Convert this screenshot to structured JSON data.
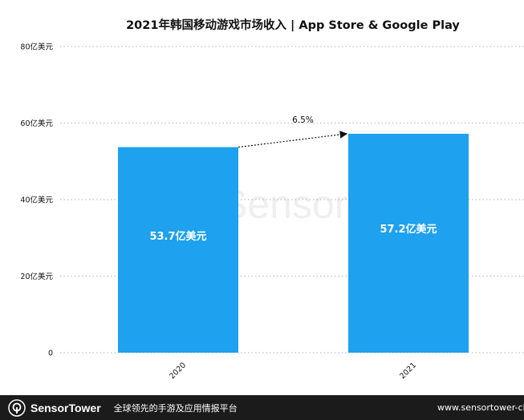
{
  "chart_data": {
    "type": "bar",
    "title": "2021年韩国移动游戏市场收入 | App Store & Google Play",
    "categories": [
      "2020",
      "2021"
    ],
    "values": [
      53.7,
      57.2
    ],
    "data_labels": [
      "53.7亿美元",
      "57.2亿美元"
    ],
    "yticks": [
      0,
      20,
      40,
      60,
      80
    ],
    "ytick_labels": [
      "0",
      "20亿美元",
      "40亿美元",
      "60亿美元",
      "80亿美元"
    ],
    "ylim": [
      0,
      80
    ],
    "xlabel": "",
    "ylabel": "",
    "grid": "dotted horizontal",
    "annotation": "6.5%",
    "bar_color": "#1ea1ee",
    "watermark": "SensorTower"
  },
  "footer": {
    "brand": "SensorTower",
    "tagline": "全球领先的手游及应用情报平台",
    "url": "www.sensortower-china.com"
  }
}
